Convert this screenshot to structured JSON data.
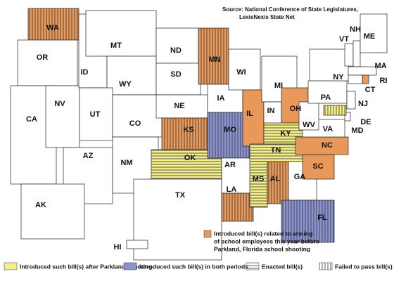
{
  "source": [
    "Source: National Conference of State Legislatures,",
    "LexisNexis State Net"
  ],
  "states": [
    {
      "abbr": "WA",
      "color": "#e8995a",
      "hatch": "vertical"
    },
    {
      "abbr": "OR"
    },
    {
      "abbr": "CA"
    },
    {
      "abbr": "NV"
    },
    {
      "abbr": "ID"
    },
    {
      "abbr": "MT"
    },
    {
      "abbr": "WY"
    },
    {
      "abbr": "UT"
    },
    {
      "abbr": "AZ"
    },
    {
      "abbr": "CO"
    },
    {
      "abbr": "NM"
    },
    {
      "abbr": "ND"
    },
    {
      "abbr": "SD"
    },
    {
      "abbr": "NE"
    },
    {
      "abbr": "KS",
      "color": "#e8995a",
      "hatch": "vertical"
    },
    {
      "abbr": "OK",
      "color": "#f5ef8a",
      "hatch": "horizontal"
    },
    {
      "abbr": "TX"
    },
    {
      "abbr": "MN",
      "color": "#e8995a",
      "hatch": "vertical"
    },
    {
      "abbr": "IA"
    },
    {
      "abbr": "MO",
      "color": "#8a93cf",
      "hatch": "vertical"
    },
    {
      "abbr": "AR"
    },
    {
      "abbr": "LA",
      "color": "#e8995a",
      "hatch": "vertical"
    },
    {
      "abbr": "WI"
    },
    {
      "abbr": "IL",
      "color": "#e8995a"
    },
    {
      "abbr": "MI"
    },
    {
      "abbr": "IN"
    },
    {
      "abbr": "OH",
      "color": "#e8995a"
    },
    {
      "abbr": "KY",
      "color": "#f5ef8a",
      "hatch": "horizontal"
    },
    {
      "abbr": "TN",
      "color": "#f5ef8a",
      "hatch": "horizontal"
    },
    {
      "abbr": "MS",
      "color": "#f5ef8a",
      "hatch": "horizontal"
    },
    {
      "abbr": "AL",
      "color": "#e8995a",
      "hatch": "vertical"
    },
    {
      "abbr": "GA"
    },
    {
      "abbr": "FL",
      "color": "#8a93cf",
      "hatch": "vertical"
    },
    {
      "abbr": "SC",
      "color": "#e8995a"
    },
    {
      "abbr": "NC",
      "color": "#e8995a"
    },
    {
      "abbr": "VA"
    },
    {
      "abbr": "WV"
    },
    {
      "abbr": "PA"
    },
    {
      "abbr": "NY"
    },
    {
      "abbr": "VT"
    },
    {
      "abbr": "NH"
    },
    {
      "abbr": "ME"
    },
    {
      "abbr": "MA"
    },
    {
      "abbr": "RI",
      "color": "#e8995a"
    },
    {
      "abbr": "CT"
    },
    {
      "abbr": "NJ"
    },
    {
      "abbr": "DE"
    },
    {
      "abbr": "MD",
      "color": "#f5ef8a",
      "hatch": "vertical"
    },
    {
      "abbr": "AK"
    },
    {
      "abbr": "HI"
    }
  ],
  "legend": {
    "main": {
      "color": "#e8995a",
      "lines": [
        "Introduced bill(s) related to arming",
        "of school employees this year before",
        "Parkland, Florida school shooting"
      ]
    },
    "items": [
      {
        "label": "Introduced such bill(s) after Parkland shooting",
        "color": "#f5ef8a"
      },
      {
        "label": "Introduced such bill(s) in both periods",
        "color": "#8a93cf"
      },
      {
        "label": "Enacted bill(s)",
        "hatch": "horizontal"
      },
      {
        "label": "Failed to pass bill(s)",
        "hatch": "vertical"
      }
    ]
  }
}
